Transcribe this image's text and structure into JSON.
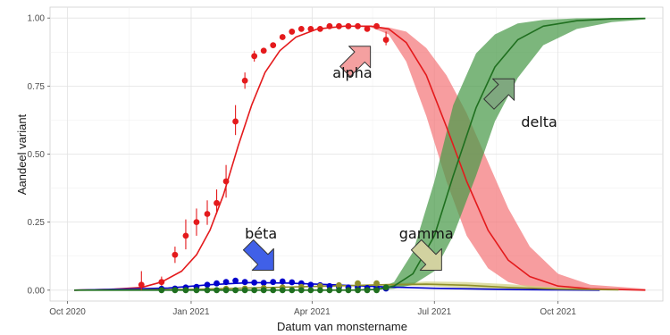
{
  "chart_data": {
    "type": "line",
    "title": "",
    "xlabel": "Datum van monstername",
    "ylabel": "Aandeel variant",
    "x_axis": {
      "type": "date",
      "range": [
        "2020-09-18",
        "2021-12-18"
      ],
      "ticks": [
        {
          "date": "2020-10-01",
          "label": "Oct 2020"
        },
        {
          "date": "2021-01-01",
          "label": "Jan 2021"
        },
        {
          "date": "2021-04-01",
          "label": "Apr 2021"
        },
        {
          "date": "2021-07-01",
          "label": "Jul 2021"
        },
        {
          "date": "2021-10-01",
          "label": "Oct 2021"
        }
      ]
    },
    "y_axis": {
      "range": [
        -0.04,
        1.04
      ],
      "ticks": [
        {
          "value": 0.0,
          "label": "0.00"
        },
        {
          "value": 0.25,
          "label": "0.25"
        },
        {
          "value": 0.5,
          "label": "0.50"
        },
        {
          "value": 0.75,
          "label": "0.75"
        },
        {
          "value": 1.0,
          "label": "1.00"
        }
      ]
    },
    "grid": true,
    "legend": "none",
    "series": [
      {
        "name": "alpha",
        "color": "#e41a1c",
        "band_color": "#f4777a",
        "fit": [
          {
            "x": "2020-10-06",
            "y": 0.0,
            "lo": 0.0,
            "hi": 0.0
          },
          {
            "x": "2020-11-01",
            "y": 0.003,
            "lo": 0.003,
            "hi": 0.003
          },
          {
            "x": "2020-11-25",
            "y": 0.01,
            "lo": 0.01,
            "hi": 0.01
          },
          {
            "x": "2020-12-10",
            "y": 0.03,
            "lo": 0.03,
            "hi": 0.03
          },
          {
            "x": "2020-12-25",
            "y": 0.07,
            "lo": 0.07,
            "hi": 0.07
          },
          {
            "x": "2021-01-05",
            "y": 0.13,
            "lo": 0.13,
            "hi": 0.13
          },
          {
            "x": "2021-01-15",
            "y": 0.22,
            "lo": 0.22,
            "hi": 0.22
          },
          {
            "x": "2021-01-25",
            "y": 0.35,
            "lo": 0.35,
            "hi": 0.35
          },
          {
            "x": "2021-02-05",
            "y": 0.53,
            "lo": 0.53,
            "hi": 0.53
          },
          {
            "x": "2021-02-15",
            "y": 0.68,
            "lo": 0.68,
            "hi": 0.68
          },
          {
            "x": "2021-02-25",
            "y": 0.8,
            "lo": 0.8,
            "hi": 0.8
          },
          {
            "x": "2021-03-08",
            "y": 0.88,
            "lo": 0.88,
            "hi": 0.88
          },
          {
            "x": "2021-03-20",
            "y": 0.93,
            "lo": 0.93,
            "hi": 0.93
          },
          {
            "x": "2021-04-05",
            "y": 0.96,
            "lo": 0.96,
            "hi": 0.96
          },
          {
            "x": "2021-04-25",
            "y": 0.97,
            "lo": 0.97,
            "hi": 0.97
          },
          {
            "x": "2021-05-15",
            "y": 0.97,
            "lo": 0.965,
            "hi": 0.97
          },
          {
            "x": "2021-05-28",
            "y": 0.96,
            "lo": 0.94,
            "hi": 0.965
          },
          {
            "x": "2021-06-10",
            "y": 0.91,
            "lo": 0.84,
            "hi": 0.95
          },
          {
            "x": "2021-06-25",
            "y": 0.79,
            "lo": 0.64,
            "hi": 0.89
          },
          {
            "x": "2021-07-10",
            "y": 0.6,
            "lo": 0.4,
            "hi": 0.79
          },
          {
            "x": "2021-07-25",
            "y": 0.4,
            "lo": 0.2,
            "hi": 0.65
          },
          {
            "x": "2021-08-10",
            "y": 0.22,
            "lo": 0.08,
            "hi": 0.47
          },
          {
            "x": "2021-08-25",
            "y": 0.11,
            "lo": 0.03,
            "hi": 0.3
          },
          {
            "x": "2021-09-10",
            "y": 0.05,
            "lo": 0.01,
            "hi": 0.16
          },
          {
            "x": "2021-10-01",
            "y": 0.015,
            "lo": 0.0,
            "hi": 0.06
          },
          {
            "x": "2021-10-25",
            "y": 0.005,
            "lo": 0.0,
            "hi": 0.02
          },
          {
            "x": "2021-12-05",
            "y": 0.0,
            "lo": 0.0,
            "hi": 0.005
          }
        ],
        "points": [
          {
            "x": "2020-11-25",
            "y": 0.02,
            "lo": 0.0,
            "hi": 0.07
          },
          {
            "x": "2020-12-10",
            "y": 0.03,
            "lo": 0.01,
            "hi": 0.05
          },
          {
            "x": "2020-12-20",
            "y": 0.13,
            "lo": 0.1,
            "hi": 0.16
          },
          {
            "x": "2020-12-28",
            "y": 0.2,
            "lo": 0.15,
            "hi": 0.26
          },
          {
            "x": "2021-01-05",
            "y": 0.25,
            "lo": 0.2,
            "hi": 0.3
          },
          {
            "x": "2021-01-13",
            "y": 0.28,
            "lo": 0.24,
            "hi": 0.33
          },
          {
            "x": "2021-01-20",
            "y": 0.32,
            "lo": 0.28,
            "hi": 0.37
          },
          {
            "x": "2021-01-27",
            "y": 0.4,
            "lo": 0.34,
            "hi": 0.46
          },
          {
            "x": "2021-02-03",
            "y": 0.62,
            "lo": 0.57,
            "hi": 0.68
          },
          {
            "x": "2021-02-10",
            "y": 0.77,
            "lo": 0.74,
            "hi": 0.8
          },
          {
            "x": "2021-02-17",
            "y": 0.86,
            "lo": 0.84,
            "hi": 0.88
          },
          {
            "x": "2021-02-24",
            "y": 0.88,
            "lo": 0.87,
            "hi": 0.89
          },
          {
            "x": "2021-03-03",
            "y": 0.9,
            "lo": 0.89,
            "hi": 0.91
          },
          {
            "x": "2021-03-10",
            "y": 0.93,
            "lo": 0.92,
            "hi": 0.94
          },
          {
            "x": "2021-03-17",
            "y": 0.95,
            "lo": 0.94,
            "hi": 0.96
          },
          {
            "x": "2021-03-24",
            "y": 0.96,
            "lo": 0.95,
            "hi": 0.97
          },
          {
            "x": "2021-03-31",
            "y": 0.96,
            "lo": 0.955,
            "hi": 0.965
          },
          {
            "x": "2021-04-07",
            "y": 0.96,
            "lo": 0.955,
            "hi": 0.965
          },
          {
            "x": "2021-04-14",
            "y": 0.97,
            "lo": 0.965,
            "hi": 0.975
          },
          {
            "x": "2021-04-21",
            "y": 0.97,
            "lo": 0.965,
            "hi": 0.975
          },
          {
            "x": "2021-04-28",
            "y": 0.97,
            "lo": 0.965,
            "hi": 0.975
          },
          {
            "x": "2021-05-05",
            "y": 0.97,
            "lo": 0.965,
            "hi": 0.975
          },
          {
            "x": "2021-05-12",
            "y": 0.96,
            "lo": 0.955,
            "hi": 0.965
          },
          {
            "x": "2021-05-19",
            "y": 0.97,
            "lo": 0.965,
            "hi": 0.975
          },
          {
            "x": "2021-05-26",
            "y": 0.92,
            "lo": 0.9,
            "hi": 0.95
          }
        ]
      },
      {
        "name": "béta",
        "color": "#0000cc",
        "band_color": "#6f6fe0",
        "fit": [
          {
            "x": "2020-10-06",
            "y": 0.0,
            "lo": 0.0,
            "hi": 0.0
          },
          {
            "x": "2020-12-15",
            "y": 0.008,
            "lo": 0.008,
            "hi": 0.008
          },
          {
            "x": "2021-01-15",
            "y": 0.02,
            "lo": 0.02,
            "hi": 0.02
          },
          {
            "x": "2021-02-15",
            "y": 0.028,
            "lo": 0.028,
            "hi": 0.028
          },
          {
            "x": "2021-03-15",
            "y": 0.026,
            "lo": 0.026,
            "hi": 0.026
          },
          {
            "x": "2021-04-15",
            "y": 0.02,
            "lo": 0.02,
            "hi": 0.02
          },
          {
            "x": "2021-05-26",
            "y": 0.012,
            "lo": 0.012,
            "hi": 0.012
          },
          {
            "x": "2021-07-01",
            "y": 0.007,
            "lo": 0.005,
            "hi": 0.009
          },
          {
            "x": "2021-09-01",
            "y": 0.002,
            "lo": 0.0,
            "hi": 0.004
          },
          {
            "x": "2021-11-01",
            "y": 0.0,
            "lo": 0.0,
            "hi": 0.001
          }
        ],
        "points": [
          {
            "x": "2020-12-10",
            "y": 0.005
          },
          {
            "x": "2020-12-20",
            "y": 0.006
          },
          {
            "x": "2020-12-28",
            "y": 0.01
          },
          {
            "x": "2021-01-05",
            "y": 0.012
          },
          {
            "x": "2021-01-13",
            "y": 0.02
          },
          {
            "x": "2021-01-20",
            "y": 0.025
          },
          {
            "x": "2021-01-27",
            "y": 0.03
          },
          {
            "x": "2021-02-03",
            "y": 0.035
          },
          {
            "x": "2021-02-10",
            "y": 0.03
          },
          {
            "x": "2021-02-17",
            "y": 0.028
          },
          {
            "x": "2021-02-24",
            "y": 0.027
          },
          {
            "x": "2021-03-03",
            "y": 0.03
          },
          {
            "x": "2021-03-10",
            "y": 0.032
          },
          {
            "x": "2021-03-17",
            "y": 0.029
          },
          {
            "x": "2021-03-24",
            "y": 0.025
          },
          {
            "x": "2021-03-31",
            "y": 0.02
          },
          {
            "x": "2021-04-07",
            "y": 0.018
          },
          {
            "x": "2021-04-14",
            "y": 0.015
          },
          {
            "x": "2021-04-21",
            "y": 0.012
          },
          {
            "x": "2021-04-28",
            "y": 0.01
          },
          {
            "x": "2021-05-05",
            "y": 0.01
          },
          {
            "x": "2021-05-12",
            "y": 0.008
          },
          {
            "x": "2021-05-19",
            "y": 0.007
          },
          {
            "x": "2021-05-26",
            "y": 0.006
          }
        ]
      },
      {
        "name": "gamma",
        "color": "#8f8f2a",
        "band_color": "#d1d183",
        "fit": [
          {
            "x": "2020-10-06",
            "y": 0.0,
            "lo": 0.0,
            "hi": 0.0
          },
          {
            "x": "2021-01-01",
            "y": 0.003,
            "lo": 0.003,
            "hi": 0.003
          },
          {
            "x": "2021-03-01",
            "y": 0.01,
            "lo": 0.01,
            "hi": 0.01
          },
          {
            "x": "2021-05-26",
            "y": 0.02,
            "lo": 0.017,
            "hi": 0.023
          },
          {
            "x": "2021-06-25",
            "y": 0.022,
            "lo": 0.015,
            "hi": 0.032
          },
          {
            "x": "2021-07-25",
            "y": 0.018,
            "lo": 0.008,
            "hi": 0.03
          },
          {
            "x": "2021-08-25",
            "y": 0.01,
            "lo": 0.003,
            "hi": 0.022
          },
          {
            "x": "2021-10-01",
            "y": 0.004,
            "lo": 0.0,
            "hi": 0.01
          },
          {
            "x": "2021-11-15",
            "y": 0.001,
            "lo": 0.0,
            "hi": 0.003
          }
        ],
        "points": [
          {
            "x": "2021-01-27",
            "y": 0.005
          },
          {
            "x": "2021-02-10",
            "y": 0.006
          },
          {
            "x": "2021-02-24",
            "y": 0.008
          },
          {
            "x": "2021-03-10",
            "y": 0.01
          },
          {
            "x": "2021-03-24",
            "y": 0.012
          },
          {
            "x": "2021-04-07",
            "y": 0.015
          },
          {
            "x": "2021-04-21",
            "y": 0.018
          },
          {
            "x": "2021-05-05",
            "y": 0.025
          },
          {
            "x": "2021-05-19",
            "y": 0.025
          }
        ]
      },
      {
        "name": "delta",
        "color": "#1f6f1f",
        "band_color": "#4a9a4a",
        "fit": [
          {
            "x": "2020-10-06",
            "y": 0.0,
            "lo": 0.0,
            "hi": 0.0
          },
          {
            "x": "2021-05-01",
            "y": 0.0,
            "lo": 0.0,
            "hi": 0.0
          },
          {
            "x": "2021-05-20",
            "y": 0.003,
            "lo": 0.002,
            "hi": 0.006
          },
          {
            "x": "2021-06-01",
            "y": 0.015,
            "lo": 0.005,
            "hi": 0.03
          },
          {
            "x": "2021-06-15",
            "y": 0.06,
            "lo": 0.02,
            "hi": 0.14
          },
          {
            "x": "2021-07-01",
            "y": 0.2,
            "lo": 0.07,
            "hi": 0.4
          },
          {
            "x": "2021-07-15",
            "y": 0.42,
            "lo": 0.2,
            "hi": 0.68
          },
          {
            "x": "2021-08-01",
            "y": 0.67,
            "lo": 0.42,
            "hi": 0.87
          },
          {
            "x": "2021-08-15",
            "y": 0.82,
            "lo": 0.62,
            "hi": 0.94
          },
          {
            "x": "2021-09-01",
            "y": 0.92,
            "lo": 0.78,
            "hi": 0.98
          },
          {
            "x": "2021-09-20",
            "y": 0.97,
            "lo": 0.9,
            "hi": 0.993
          },
          {
            "x": "2021-10-15",
            "y": 0.99,
            "lo": 0.96,
            "hi": 0.999
          },
          {
            "x": "2021-11-10",
            "y": 0.997,
            "lo": 0.985,
            "hi": 1.0
          },
          {
            "x": "2021-12-05",
            "y": 0.999,
            "lo": 0.995,
            "hi": 1.0
          }
        ],
        "points": [
          {
            "x": "2020-12-10",
            "y": 0.0
          },
          {
            "x": "2020-12-20",
            "y": 0.0
          },
          {
            "x": "2020-12-28",
            "y": 0.0
          },
          {
            "x": "2021-01-05",
            "y": 0.0
          },
          {
            "x": "2021-01-13",
            "y": 0.0
          },
          {
            "x": "2021-01-20",
            "y": 0.0
          },
          {
            "x": "2021-01-27",
            "y": 0.0
          },
          {
            "x": "2021-02-03",
            "y": 0.0
          },
          {
            "x": "2021-02-10",
            "y": 0.0
          },
          {
            "x": "2021-02-17",
            "y": 0.0
          },
          {
            "x": "2021-02-24",
            "y": 0.0
          },
          {
            "x": "2021-03-03",
            "y": 0.0
          },
          {
            "x": "2021-03-10",
            "y": 0.0
          },
          {
            "x": "2021-03-17",
            "y": 0.0
          },
          {
            "x": "2021-03-24",
            "y": 0.0
          },
          {
            "x": "2021-03-31",
            "y": 0.0
          },
          {
            "x": "2021-04-07",
            "y": 0.0
          },
          {
            "x": "2021-04-14",
            "y": 0.0
          },
          {
            "x": "2021-04-21",
            "y": 0.0
          },
          {
            "x": "2021-04-28",
            "y": 0.0
          },
          {
            "x": "2021-05-05",
            "y": 0.0
          },
          {
            "x": "2021-05-12",
            "y": 0.0
          },
          {
            "x": "2021-05-19",
            "y": 0.0
          },
          {
            "x": "2021-05-26",
            "y": 0.01
          }
        ]
      }
    ],
    "annotations": [
      {
        "series": "alpha",
        "text": "alpha",
        "arrow_color": "#f4a0a0",
        "arrow_direction": "up-right",
        "arrow_at": {
          "x": "2021-05-05",
          "y": 0.85
        },
        "text_at": {
          "x": "2021-05-01",
          "y": 0.78
        }
      },
      {
        "series": "delta",
        "text": "delta",
        "arrow_color": "#7fa87f",
        "arrow_direction": "up-right",
        "arrow_at": {
          "x": "2021-08-20",
          "y": 0.73
        },
        "text_at": {
          "x": "2021-09-17",
          "y": 0.6
        }
      },
      {
        "series": "béta",
        "text": "béta",
        "arrow_color": "#4060e8",
        "arrow_direction": "down-right",
        "arrow_at": {
          "x": "2021-02-22",
          "y": 0.12
        },
        "text_at": {
          "x": "2021-02-22",
          "y": 0.19
        }
      },
      {
        "series": "gamma",
        "text": "gamma",
        "arrow_color": "#d2d2a0",
        "arrow_direction": "down-right",
        "arrow_at": {
          "x": "2021-06-27",
          "y": 0.12
        },
        "text_at": {
          "x": "2021-06-25",
          "y": 0.19
        }
      }
    ]
  }
}
